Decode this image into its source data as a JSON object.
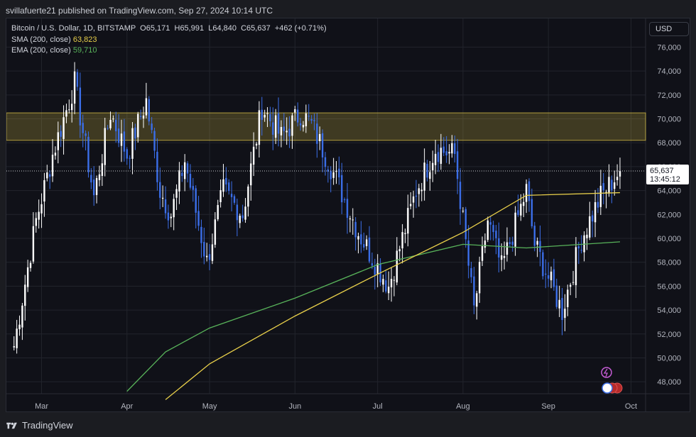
{
  "header": {
    "publish_line": "svillafuerte21 published on TradingView.com, Sep 27, 2024 10:14 UTC"
  },
  "legend": {
    "symbol": "Bitcoin / U.S. Dollar, 1D, BITSTAMP",
    "open": "O65,171",
    "high": "H65,991",
    "low": "L64,840",
    "close": "C65,637",
    "change": "+462 (+0.71%)",
    "sma_label": "SMA (200, close)",
    "sma_value": "63,823",
    "ema_label": "EMA (200, close)",
    "ema_value": "59,710"
  },
  "currency_button": "USD",
  "price_tag": {
    "price": "65,637",
    "countdown": "13:45:12"
  },
  "footer": {
    "brand": "TradingView"
  },
  "colors": {
    "up": "#ffffff",
    "down": "#3b6ee8",
    "sma": "#e8cf4a",
    "ema": "#58b35a",
    "zone": "#e8cf4a"
  },
  "chart_data": {
    "type": "candlestick",
    "y_axis": [
      "76,000",
      "74,000",
      "72,000",
      "70,000",
      "68,000",
      "66,000",
      "64,000",
      "62,000",
      "60,000",
      "58,000",
      "56,000",
      "54,000",
      "52,000",
      "50,000",
      "48,000"
    ],
    "x_axis": [
      "Mar",
      "Apr",
      "May",
      "Jun",
      "Jul",
      "Aug",
      "Sep",
      "Oct"
    ],
    "ylim": [
      47000,
      78400
    ],
    "resistance_zone": [
      68200,
      70500
    ],
    "last_price": 65637,
    "close_path": [
      [
        "Feb 20",
        51000
      ],
      [
        "Feb 28",
        61500
      ],
      [
        "Mar 5",
        67000
      ],
      [
        "Mar 13",
        73000
      ],
      [
        "Mar 20",
        63500
      ],
      [
        "Mar 26",
        70500
      ],
      [
        "Apr 1",
        67000
      ],
      [
        "Apr 8",
        71500
      ],
      [
        "Apr 13",
        64000
      ],
      [
        "Apr 17",
        62000
      ],
      [
        "Apr 22",
        66500
      ],
      [
        "Apr 30",
        58000
      ],
      [
        "May 6",
        64000
      ],
      [
        "May 13",
        62000
      ],
      [
        "May 20",
        71000
      ],
      [
        "May 27",
        68500
      ],
      [
        "Jun 3",
        70500
      ],
      [
        "Jun 7",
        69500
      ],
      [
        "Jun 14",
        66000
      ],
      [
        "Jun 24",
        60500
      ],
      [
        "Jul 5",
        56000
      ],
      [
        "Jul 15",
        64000
      ],
      [
        "Jul 22",
        67500
      ],
      [
        "Jul 29",
        67000
      ],
      [
        "Aug 5",
        54000
      ],
      [
        "Aug 10",
        61500
      ],
      [
        "Aug 15",
        57500
      ],
      [
        "Aug 24",
        64000
      ],
      [
        "Aug 27",
        59500
      ],
      [
        "Sep 6",
        53900
      ],
      [
        "Sep 13",
        60000
      ],
      [
        "Sep 20",
        63500
      ],
      [
        "Sep 27",
        65637
      ]
    ],
    "sma_200_path": [
      [
        "Apr 15",
        46500
      ],
      [
        "May 1",
        49500
      ],
      [
        "Jun 1",
        53500
      ],
      [
        "Jul 1",
        57000
      ],
      [
        "Aug 1",
        60500
      ],
      [
        "Aug 24",
        63600
      ],
      [
        "Sep 27",
        63823
      ]
    ],
    "ema_200_path": [
      [
        "Apr 1",
        47200
      ],
      [
        "Apr 15",
        50500
      ],
      [
        "May 1",
        52500
      ],
      [
        "Jun 1",
        55000
      ],
      [
        "Jul 1",
        57800
      ],
      [
        "Aug 1",
        59500
      ],
      [
        "Aug 24",
        59200
      ],
      [
        "Sep 27",
        59710
      ]
    ],
    "xlim": [
      "Feb 18",
      "Oct 5"
    ]
  }
}
